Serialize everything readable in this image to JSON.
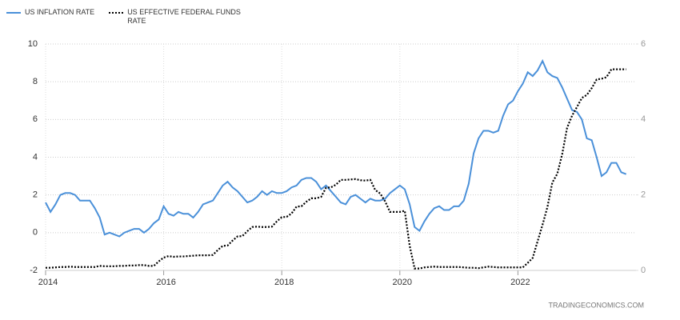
{
  "chart_data": {
    "type": "line",
    "x": [
      2014,
      2014.083,
      2014.167,
      2014.25,
      2014.333,
      2014.417,
      2014.5,
      2014.583,
      2014.667,
      2014.75,
      2014.833,
      2014.917,
      2015,
      2015.083,
      2015.167,
      2015.25,
      2015.333,
      2015.417,
      2015.5,
      2015.583,
      2015.667,
      2015.75,
      2015.833,
      2015.917,
      2016,
      2016.083,
      2016.167,
      2016.25,
      2016.333,
      2016.417,
      2016.5,
      2016.583,
      2016.667,
      2016.75,
      2016.833,
      2016.917,
      2017,
      2017.083,
      2017.167,
      2017.25,
      2017.333,
      2017.417,
      2017.5,
      2017.583,
      2017.667,
      2017.75,
      2017.833,
      2017.917,
      2018,
      2018.083,
      2018.167,
      2018.25,
      2018.333,
      2018.417,
      2018.5,
      2018.583,
      2018.667,
      2018.75,
      2018.833,
      2018.917,
      2019,
      2019.083,
      2019.167,
      2019.25,
      2019.333,
      2019.417,
      2019.5,
      2019.583,
      2019.667,
      2019.75,
      2019.833,
      2019.917,
      2020,
      2020.083,
      2020.167,
      2020.25,
      2020.333,
      2020.417,
      2020.5,
      2020.583,
      2020.667,
      2020.75,
      2020.833,
      2020.917,
      2021,
      2021.083,
      2021.167,
      2021.25,
      2021.333,
      2021.417,
      2021.5,
      2021.583,
      2021.667,
      2021.75,
      2021.833,
      2021.917,
      2022,
      2022.083,
      2022.167,
      2022.25,
      2022.333,
      2022.417,
      2022.5,
      2022.583,
      2022.667,
      2022.75,
      2022.833,
      2022.917,
      2023,
      2023.083,
      2023.167,
      2023.25,
      2023.333,
      2023.417,
      2023.5,
      2023.583,
      2023.667,
      2023.75,
      2023.833
    ],
    "series": [
      {
        "name": "US INFLATION RATE",
        "color": "#4a90d9",
        "values": [
          1.6,
          1.1,
          1.5,
          2.0,
          2.1,
          2.1,
          2.0,
          1.7,
          1.7,
          1.7,
          1.3,
          0.8,
          -0.1,
          0.0,
          -0.1,
          -0.2,
          0.0,
          0.1,
          0.2,
          0.2,
          0.0,
          0.2,
          0.5,
          0.7,
          1.4,
          1.0,
          0.9,
          1.1,
          1.0,
          1.0,
          0.8,
          1.1,
          1.5,
          1.6,
          1.7,
          2.1,
          2.5,
          2.7,
          2.4,
          2.2,
          1.9,
          1.6,
          1.7,
          1.9,
          2.2,
          2.0,
          2.2,
          2.1,
          2.1,
          2.2,
          2.4,
          2.5,
          2.8,
          2.9,
          2.9,
          2.7,
          2.3,
          2.5,
          2.2,
          1.9,
          1.6,
          1.5,
          1.9,
          2.0,
          1.8,
          1.6,
          1.8,
          1.7,
          1.7,
          1.8,
          2.1,
          2.3,
          2.5,
          2.3,
          1.5,
          0.3,
          0.1,
          0.6,
          1.0,
          1.3,
          1.4,
          1.2,
          1.2,
          1.4,
          1.4,
          1.7,
          2.6,
          4.2,
          5.0,
          5.4,
          5.4,
          5.3,
          5.4,
          6.2,
          6.8,
          7.0,
          7.5,
          7.9,
          8.5,
          8.3,
          8.6,
          9.1,
          8.5,
          8.3,
          8.2,
          7.7,
          7.1,
          6.5,
          6.4,
          6.0,
          5.0,
          4.9,
          4.0,
          3.0,
          3.2,
          3.7,
          3.7,
          3.2,
          3.1
        ]
      },
      {
        "name": "US EFFECTIVE FEDERAL FUNDS RATE",
        "color": "#000000",
        "dashed": true,
        "axis": "y2",
        "values": [
          0.07,
          0.07,
          0.08,
          0.09,
          0.09,
          0.1,
          0.09,
          0.09,
          0.09,
          0.09,
          0.09,
          0.12,
          0.11,
          0.11,
          0.11,
          0.12,
          0.12,
          0.13,
          0.13,
          0.14,
          0.14,
          0.12,
          0.12,
          0.24,
          0.34,
          0.38,
          0.36,
          0.37,
          0.37,
          0.38,
          0.39,
          0.4,
          0.4,
          0.4,
          0.41,
          0.54,
          0.65,
          0.66,
          0.79,
          0.9,
          0.91,
          1.04,
          1.15,
          1.16,
          1.15,
          1.15,
          1.16,
          1.3,
          1.41,
          1.42,
          1.51,
          1.69,
          1.7,
          1.82,
          1.91,
          1.91,
          1.95,
          2.19,
          2.2,
          2.27,
          2.4,
          2.4,
          2.41,
          2.42,
          2.39,
          2.38,
          2.4,
          2.13,
          2.04,
          1.83,
          1.55,
          1.55,
          1.55,
          1.58,
          0.65,
          0.05,
          0.05,
          0.08,
          0.09,
          0.1,
          0.09,
          0.09,
          0.09,
          0.09,
          0.09,
          0.08,
          0.07,
          0.07,
          0.06,
          0.08,
          0.1,
          0.09,
          0.08,
          0.08,
          0.08,
          0.08,
          0.08,
          0.08,
          0.2,
          0.33,
          0.77,
          1.21,
          1.68,
          2.33,
          2.56,
          3.08,
          3.78,
          4.1,
          4.33,
          4.57,
          4.65,
          4.83,
          5.06,
          5.08,
          5.12,
          5.33,
          5.33,
          5.33,
          5.33
        ]
      }
    ],
    "xlim": [
      2014,
      2024
    ],
    "xticks": [
      2014,
      2016,
      2018,
      2020,
      2022
    ],
    "ylim": [
      -2,
      10
    ],
    "yticks": [
      -2,
      0,
      2,
      4,
      6,
      8,
      10
    ],
    "y2lim": [
      0,
      6
    ],
    "y2ticks": [
      0,
      2,
      4,
      6
    ],
    "grid": true,
    "legend": "top-left",
    "source": "TRADINGECONOMICS.COM"
  }
}
